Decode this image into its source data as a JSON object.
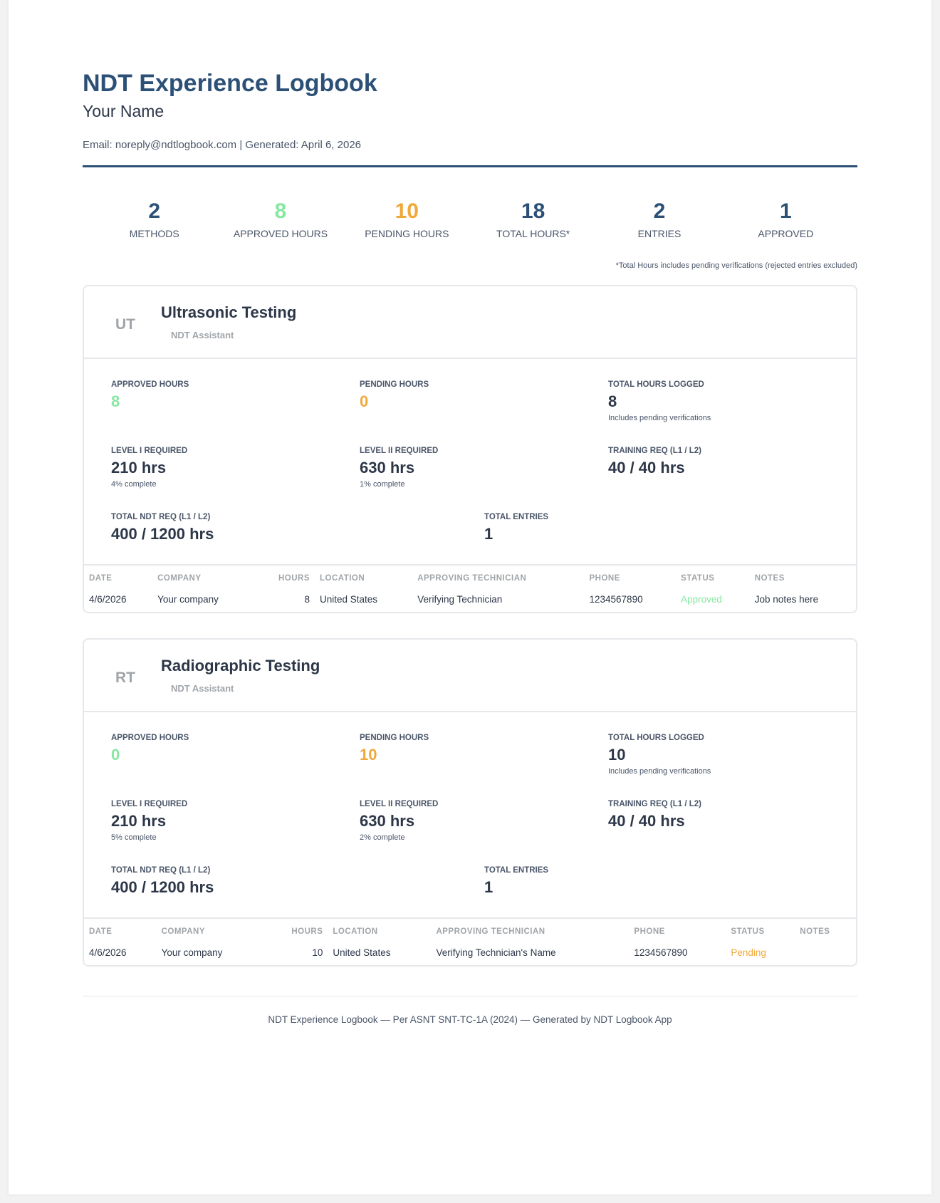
{
  "header": {
    "title": "NDT Experience Logbook",
    "name": "Your Name",
    "meta": "Email: noreply@ndtlogbook.com | Generated: April 6, 2026"
  },
  "colors": {
    "navy": "#2c5076",
    "green": "#86e8a0",
    "orange": "#f0a83a"
  },
  "stats": [
    {
      "value": "2",
      "label": "METHODS"
    },
    {
      "value": "8",
      "label": "APPROVED HOURS"
    },
    {
      "value": "10",
      "label": "PENDING HOURS"
    },
    {
      "value": "18",
      "label": "TOTAL HOURS*"
    },
    {
      "value": "2",
      "label": "ENTRIES"
    },
    {
      "value": "1",
      "label": "APPROVED"
    }
  ],
  "footnote": "*Total Hours includes pending verifications (rejected entries excluded)",
  "columns": [
    "DATE",
    "COMPANY",
    "HOURS",
    "LOCATION",
    "APPROVING TECHNICIAN",
    "PHONE",
    "STATUS",
    "NOTES"
  ],
  "labels": {
    "approved": "APPROVED HOURS",
    "pending": "PENDING HOURS",
    "total": "TOTAL HOURS LOGGED",
    "includes": "Includes pending verifications",
    "l1": "LEVEL I REQUIRED",
    "l2": "LEVEL II REQUIRED",
    "training": "TRAINING REQ (L1 / L2)",
    "ndt": "TOTAL NDT REQ (L1 / L2)",
    "entries": "TOTAL ENTRIES"
  },
  "methods": [
    {
      "abbr": "UT",
      "name": "Ultrasonic Testing",
      "sub": "NDT Assistant",
      "approved": "8",
      "pending": "0",
      "total": "8",
      "l1": "210 hrs",
      "l1_pct": "4% complete",
      "l2": "630 hrs",
      "l2_pct": "1% complete",
      "training": "40 / 40 hrs",
      "ndt": "400 / 1200 hrs",
      "entries": "1",
      "rows": [
        {
          "date": "4/6/2026",
          "company": "Your company",
          "hours": "8",
          "location": "United States",
          "tech": "Verifying Technician",
          "phone": "1234567890",
          "status": "Approved",
          "notes": "Job notes here"
        }
      ]
    },
    {
      "abbr": "RT",
      "name": "Radiographic Testing",
      "sub": "NDT Assistant",
      "approved": "0",
      "pending": "10",
      "total": "10",
      "l1": "210 hrs",
      "l1_pct": "5% complete",
      "l2": "630 hrs",
      "l2_pct": "2% complete",
      "training": "40 / 40 hrs",
      "ndt": "400 / 1200 hrs",
      "entries": "1",
      "rows": [
        {
          "date": "4/6/2026",
          "company": "Your company",
          "hours": "10",
          "location": "United States",
          "tech": "Verifying Technician's Name",
          "phone": "1234567890",
          "status": "Pending",
          "notes": ""
        }
      ]
    }
  ],
  "footer": "NDT Experience Logbook — Per ASNT SNT-TC-1A (2024) — Generated by NDT Logbook App"
}
